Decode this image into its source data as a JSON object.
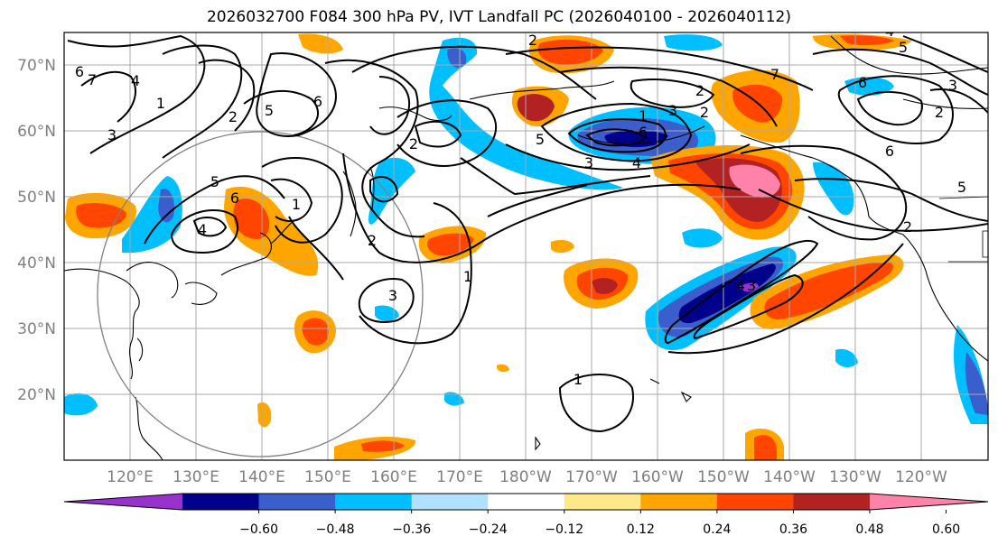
{
  "title": "2026032700 F084 300 hPa PV, IVT Landfall PC (2026040100 - 2026040112)",
  "map": {
    "lat_labels": [
      "70°N",
      "60°N",
      "50°N",
      "40°N",
      "30°N",
      "20°N"
    ],
    "lon_labels": [
      "120°E",
      "130°E",
      "140°E",
      "150°E",
      "160°E",
      "170°E",
      "180°W",
      "170°W",
      "160°W",
      "150°W",
      "140°W",
      "130°W",
      "120°W"
    ],
    "contour_labels": [
      "5",
      "6",
      "7",
      "4",
      "1",
      "2",
      "3",
      "5",
      "6",
      "4",
      "1",
      "2",
      "3",
      "2",
      "1",
      "1",
      "2",
      "3",
      "1",
      "3",
      "2",
      "3",
      "4",
      "6",
      "5",
      "2",
      "3",
      "6",
      "5",
      "4",
      "5",
      "6",
      "2",
      "7",
      "4",
      "2",
      "6"
    ]
  },
  "colorbar": {
    "colors": [
      "#9932cc",
      "#00008b",
      "#3a5fcd",
      "#00bfff",
      "#b0e2ff",
      "#ffffff",
      "#ffe889",
      "#ffa500",
      "#ff4500",
      "#b22222",
      "#ff82ab"
    ],
    "tick_labels": [
      "−0.60",
      "−0.48",
      "−0.36",
      "−0.24",
      "−0.12",
      "0.12",
      "0.24",
      "0.36",
      "0.48",
      "0.60"
    ]
  },
  "colors": {
    "purple": "#9932cc",
    "navy": "#00008b",
    "royal": "#3a5fcd",
    "sky": "#00bfff",
    "light": "#b0e2ff",
    "yellow": "#ffe889",
    "orange": "#ffa500",
    "redorange": "#ff4500",
    "brick": "#b22222",
    "pink": "#ff82ab"
  }
}
